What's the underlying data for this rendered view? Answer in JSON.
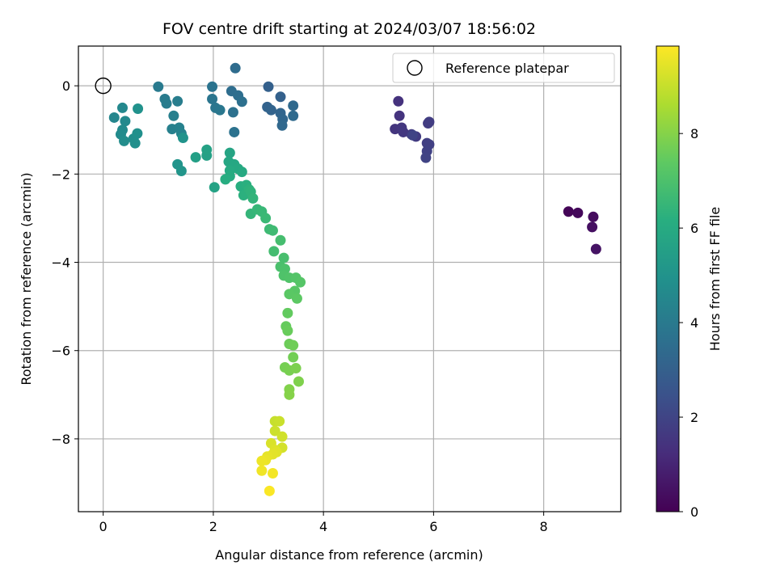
{
  "chart_data": {
    "type": "scatter",
    "title": "FOV centre drift starting at 2024/03/07 18:56:02",
    "xlabel": "Angular distance from reference (arcmin)",
    "ylabel": "Rotation from reference (arcmin)",
    "xlim": [
      -0.45,
      9.4
    ],
    "ylim": [
      -9.65,
      0.9
    ],
    "xticks": [
      0,
      2,
      4,
      6,
      8
    ],
    "yticks": [
      0,
      -2,
      -4,
      -6,
      -8
    ],
    "xtick_labels": [
      "0",
      "2",
      "4",
      "6",
      "8"
    ],
    "ytick_labels": [
      "0",
      "−2",
      "−4",
      "−6",
      "−8"
    ],
    "grid": true,
    "legend": {
      "placement": "top-right",
      "entries": [
        "Reference platepar"
      ]
    },
    "reference_point": {
      "x": 0,
      "y": 0
    },
    "colorbar": {
      "label": "Hours from first FF file",
      "range": [
        0,
        9.85
      ],
      "ticks": [
        0,
        2,
        4,
        6,
        8
      ],
      "tick_labels": [
        "0",
        "2",
        "4",
        "6",
        "8"
      ],
      "colormap": "viridis"
    },
    "points": [
      [
        8.45,
        -2.85,
        0.1
      ],
      [
        8.62,
        -2.88,
        0.2
      ],
      [
        8.9,
        -2.97,
        0.3
      ],
      [
        8.88,
        -3.2,
        0.4
      ],
      [
        8.95,
        -3.7,
        0.5
      ],
      [
        5.36,
        -0.35,
        1.4
      ],
      [
        5.38,
        -0.68,
        1.45
      ],
      [
        5.3,
        -0.98,
        1.5
      ],
      [
        5.42,
        -0.95,
        1.55
      ],
      [
        5.45,
        -1.05,
        1.6
      ],
      [
        5.6,
        -1.1,
        1.65
      ],
      [
        5.68,
        -1.15,
        1.7
      ],
      [
        5.9,
        -0.85,
        1.72
      ],
      [
        5.92,
        -0.82,
        1.75
      ],
      [
        5.88,
        -1.3,
        1.8
      ],
      [
        5.92,
        -1.33,
        1.85
      ],
      [
        5.88,
        -1.48,
        1.9
      ],
      [
        5.86,
        -1.63,
        1.95
      ],
      [
        5.62,
        -1.12,
        2.0
      ],
      [
        3.0,
        -0.02,
        3.0
      ],
      [
        3.22,
        -0.25,
        3.05
      ],
      [
        2.98,
        -0.48,
        3.1
      ],
      [
        3.05,
        -0.55,
        3.15
      ],
      [
        3.22,
        -0.62,
        3.2
      ],
      [
        3.26,
        -0.76,
        3.25
      ],
      [
        3.25,
        -0.9,
        3.3
      ],
      [
        3.45,
        -0.45,
        3.35
      ],
      [
        3.45,
        -0.68,
        3.4
      ],
      [
        2.4,
        0.4,
        3.45
      ],
      [
        2.33,
        -0.12,
        3.5
      ],
      [
        2.45,
        -0.22,
        3.55
      ],
      [
        2.52,
        -0.36,
        3.6
      ],
      [
        2.36,
        -0.6,
        3.65
      ],
      [
        2.38,
        -1.05,
        3.7
      ],
      [
        1.98,
        -0.02,
        3.75
      ],
      [
        1.98,
        -0.3,
        3.8
      ],
      [
        2.04,
        -0.5,
        3.85
      ],
      [
        2.12,
        -0.55,
        3.9
      ],
      [
        1.0,
        -0.02,
        4.0
      ],
      [
        1.12,
        -0.3,
        4.05
      ],
      [
        1.15,
        -0.4,
        4.1
      ],
      [
        1.35,
        -0.35,
        4.15
      ],
      [
        1.28,
        -0.68,
        4.2
      ],
      [
        1.25,
        -0.98,
        4.25
      ],
      [
        1.38,
        -0.95,
        4.3
      ],
      [
        1.42,
        -1.08,
        4.35
      ],
      [
        0.2,
        -0.72,
        4.5
      ],
      [
        0.35,
        -0.5,
        4.55
      ],
      [
        0.4,
        -0.8,
        4.6
      ],
      [
        0.35,
        -1.0,
        4.65
      ],
      [
        0.32,
        -1.1,
        4.7
      ],
      [
        0.38,
        -1.25,
        4.75
      ],
      [
        0.55,
        -1.2,
        4.8
      ],
      [
        0.58,
        -1.3,
        4.85
      ],
      [
        0.62,
        -1.08,
        4.9
      ],
      [
        0.63,
        -0.52,
        4.95
      ],
      [
        1.45,
        -1.18,
        5.0
      ],
      [
        1.35,
        -1.78,
        5.05
      ],
      [
        1.42,
        -1.93,
        5.1
      ],
      [
        1.68,
        -1.62,
        5.5
      ],
      [
        1.88,
        -1.58,
        5.55
      ],
      [
        1.88,
        -1.45,
        5.6
      ],
      [
        2.02,
        -2.3,
        5.65
      ],
      [
        2.3,
        -1.52,
        5.75
      ],
      [
        2.28,
        -1.72,
        5.8
      ],
      [
        2.38,
        -1.78,
        5.85
      ],
      [
        2.45,
        -1.88,
        5.9
      ],
      [
        2.52,
        -1.95,
        5.95
      ],
      [
        2.3,
        -1.92,
        6.0
      ],
      [
        2.3,
        -2.05,
        6.05
      ],
      [
        2.22,
        -2.12,
        6.1
      ],
      [
        2.5,
        -2.28,
        6.15
      ],
      [
        2.6,
        -2.25,
        6.2
      ],
      [
        2.55,
        -2.48,
        6.25
      ],
      [
        2.65,
        -2.35,
        6.3
      ],
      [
        2.68,
        -2.4,
        6.35
      ],
      [
        2.72,
        -2.55,
        6.4
      ],
      [
        2.68,
        -2.9,
        6.45
      ],
      [
        2.8,
        -2.8,
        6.5
      ],
      [
        2.88,
        -2.85,
        6.55
      ],
      [
        2.95,
        -3.0,
        6.6
      ],
      [
        3.02,
        -3.25,
        6.65
      ],
      [
        3.08,
        -3.28,
        6.7
      ],
      [
        3.1,
        -3.75,
        6.8
      ],
      [
        3.22,
        -3.5,
        6.85
      ],
      [
        3.28,
        -3.9,
        6.9
      ],
      [
        3.22,
        -4.1,
        6.95
      ],
      [
        3.3,
        -4.15,
        7.0
      ],
      [
        3.28,
        -4.3,
        7.05
      ],
      [
        3.38,
        -4.35,
        7.1
      ],
      [
        3.5,
        -4.35,
        7.15
      ],
      [
        3.58,
        -4.45,
        7.2
      ],
      [
        3.48,
        -4.65,
        7.25
      ],
      [
        3.38,
        -4.72,
        7.3
      ],
      [
        3.52,
        -4.82,
        7.35
      ],
      [
        3.35,
        -5.15,
        7.45
      ],
      [
        3.32,
        -5.45,
        7.5
      ],
      [
        3.35,
        -5.55,
        7.55
      ],
      [
        3.38,
        -5.85,
        7.6
      ],
      [
        3.45,
        -5.88,
        7.65
      ],
      [
        3.45,
        -6.15,
        7.7
      ],
      [
        3.3,
        -6.38,
        7.75
      ],
      [
        3.38,
        -6.45,
        7.8
      ],
      [
        3.5,
        -6.4,
        7.85
      ],
      [
        3.55,
        -6.7,
        7.9
      ],
      [
        3.38,
        -6.88,
        7.95
      ],
      [
        3.38,
        -7.0,
        8.0
      ],
      [
        3.12,
        -7.6,
        9.0
      ],
      [
        3.2,
        -7.6,
        9.05
      ],
      [
        3.12,
        -7.82,
        9.1
      ],
      [
        3.25,
        -7.95,
        9.15
      ],
      [
        3.25,
        -8.2,
        9.2
      ],
      [
        3.05,
        -8.1,
        9.3
      ],
      [
        3.12,
        -8.25,
        9.35
      ],
      [
        3.15,
        -8.3,
        9.4
      ],
      [
        3.08,
        -8.35,
        9.45
      ],
      [
        2.98,
        -8.4,
        9.5
      ],
      [
        2.95,
        -8.48,
        9.55
      ],
      [
        2.88,
        -8.5,
        9.6
      ],
      [
        2.88,
        -8.72,
        9.65
      ],
      [
        3.08,
        -8.78,
        9.7
      ],
      [
        3.02,
        -9.18,
        9.8
      ]
    ]
  }
}
